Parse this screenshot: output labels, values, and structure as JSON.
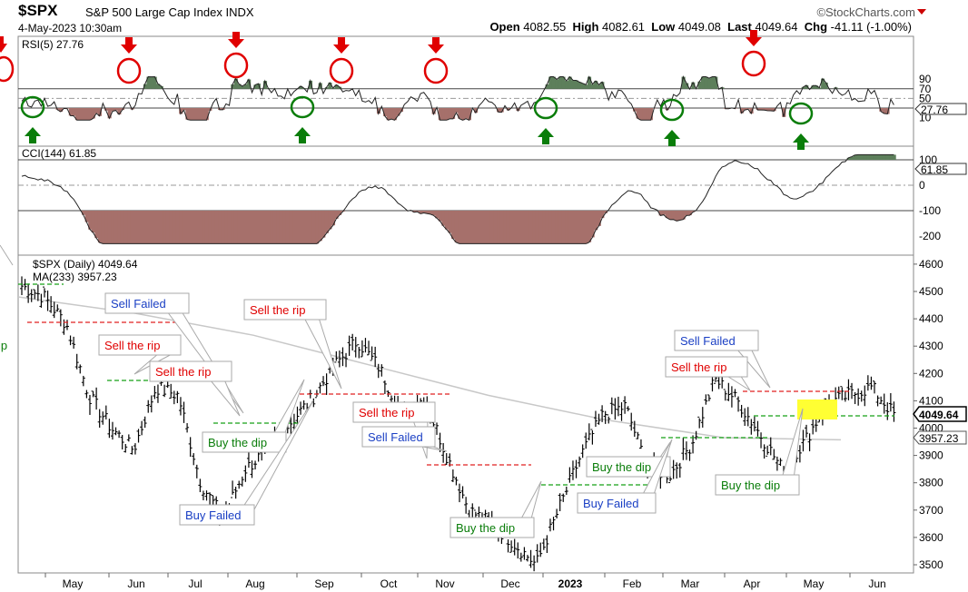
{
  "header": {
    "symbol": "$SPX",
    "name": "S&P 500 Large Cap Index",
    "exchange": "INDX",
    "brand": "©StockCharts.com",
    "date": "4-May-2023 10:30am",
    "open_label": "Open",
    "open": "4082.55",
    "high_label": "High",
    "high": "4082.61",
    "low_label": "Low",
    "low": "4049.08",
    "last_label": "Last",
    "last": "4049.64",
    "chg_label": "Chg",
    "chg": "-41.11 (-1.00%)"
  },
  "colors": {
    "up_fill": "#5d7f5b",
    "down_fill": "#a6706b",
    "sell_red": "#e00000",
    "buy_green": "#0a7d0a",
    "failed_blue": "#1a3fc4",
    "level_red": "#e02020",
    "level_green": "#16a016",
    "highlight": "#ffff33",
    "ma_gray": "#c8c8c8"
  },
  "rsi": {
    "label": "RSI(5) 27.76",
    "last": "27.76",
    "ticks": [
      "90",
      "70",
      "50",
      "30",
      "10"
    ]
  },
  "cci": {
    "label": "CCI(144) 61.85",
    "last": "61.85",
    "ticks": [
      "100",
      "0",
      "-100",
      "-200"
    ]
  },
  "price": {
    "label": "$SPX (Daily) 4049.64",
    "ma_label": "MA(233) 3957.23",
    "last": "4049.64",
    "ma_last": "3957.23"
  },
  "chart_data": {
    "type": "line",
    "title": "$SPX S&P 500 Large Cap Index INDX",
    "x_ticks": [
      "May",
      "Jun",
      "Jul",
      "Aug",
      "Sep",
      "Oct",
      "Nov",
      "Dec",
      "2023",
      "Feb",
      "Mar",
      "Apr",
      "May",
      "Jun"
    ],
    "ylim": [
      3450,
      4650
    ],
    "y_ticks": [
      4600,
      4500,
      4400,
      4300,
      4200,
      4100,
      4000,
      3900,
      3800,
      3700,
      3600,
      3500
    ],
    "series": [
      {
        "name": "$SPX (Daily)",
        "x": [
          "Apr",
          "Apr",
          "May",
          "May",
          "May",
          "May",
          "Jun",
          "Jun",
          "Jun",
          "Jun",
          "Jul",
          "Jul",
          "Jul",
          "Aug",
          "Aug",
          "Aug",
          "Aug",
          "Sep",
          "Sep",
          "Sep",
          "Oct",
          "Oct",
          "Oct",
          "Oct",
          "Nov",
          "Nov",
          "Dec",
          "Dec",
          "Dec",
          "2023",
          "Jan",
          "Feb",
          "Feb",
          "Mar",
          "Mar",
          "Mar",
          "Apr",
          "Apr",
          "Apr",
          "May"
        ],
        "values": [
          4520,
          4480,
          4380,
          4120,
          4000,
          3920,
          4150,
          4120,
          3800,
          3670,
          3850,
          3920,
          4020,
          4110,
          4230,
          4320,
          4220,
          4050,
          4110,
          3900,
          3700,
          3650,
          3580,
          3500,
          3700,
          3900,
          4050,
          4080,
          3850,
          3830,
          3950,
          4180,
          4100,
          3980,
          3850,
          3950,
          4090,
          4120,
          4150,
          4050
        ]
      },
      {
        "name": "MA(233)",
        "x": [
          "Apr",
          "Jun",
          "Aug",
          "Oct",
          "Dec",
          "Feb",
          "Apr",
          "May"
        ],
        "values": [
          4480,
          4420,
          4340,
          4230,
          4120,
          4030,
          3965,
          3957
        ]
      }
    ],
    "rsi_ticks": [
      90,
      70,
      50,
      30,
      10
    ],
    "cci_ticks": [
      100,
      0,
      -100,
      -200
    ],
    "annotations": {
      "sell_the_rip": [
        "Sell the rip",
        "Sell the rip",
        "Sell the rip",
        "Sell the rip",
        "Sell the rip"
      ],
      "buy_the_dip": [
        "Buy the dip",
        "Buy the dip",
        "Buy the dip",
        "Buy the dip"
      ],
      "sell_failed": [
        "Sell Failed",
        "Sell Failed",
        "Sell Failed"
      ],
      "buy_failed": [
        "Buy Failed",
        "Buy Failed"
      ],
      "edge_fragment": "ip"
    }
  }
}
